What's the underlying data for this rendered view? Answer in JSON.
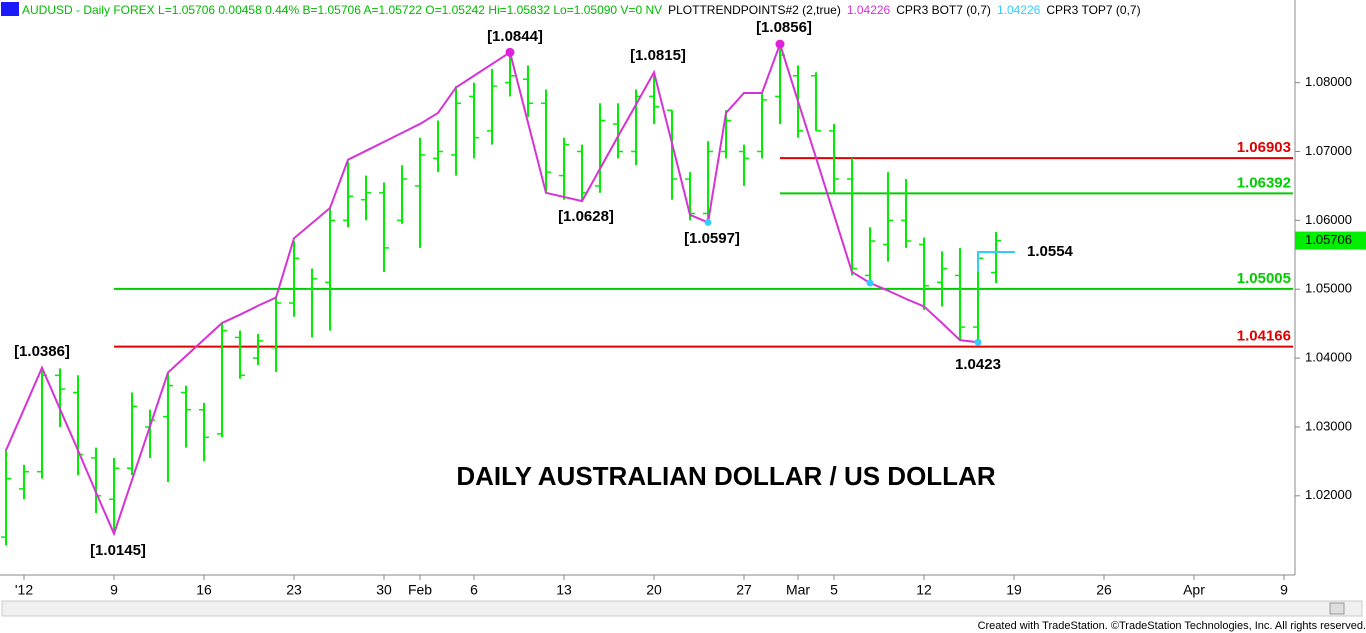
{
  "chart_data": {
    "type": "ohlc",
    "header": [
      "AUDUSD - Daily FOREX L=1.05706 0.00458 0.44% B=1.05706 A=1.05722 O=1.05242 Hi=1.05832 Lo=1.05090 V=0 NV",
      "PLOTTRENDPOINTS#2 (2,true)",
      "1.04226",
      "CPR3 BOT7 (0,7)",
      "1.04226",
      "CPR3 TOP7 (0,7)"
    ],
    "title": "DAILY AUSTRALIAN DOLLAR / US DOLLAR",
    "footer": "Created with TradeStation. ©TradeStation Technologies, Inc. All rights reserved.",
    "categories": [
      null,
      "'12",
      null,
      null,
      null,
      null,
      "9",
      null,
      null,
      null,
      null,
      "16",
      null,
      null,
      null,
      null,
      "23",
      null,
      null,
      null,
      null,
      "30",
      null,
      "Feb",
      null,
      null,
      "6",
      null,
      null,
      null,
      null,
      "13",
      null,
      null,
      null,
      null,
      "20",
      null,
      null,
      null,
      null,
      "27",
      null,
      null,
      "Mar",
      null,
      "5",
      null,
      null,
      null,
      null,
      "12",
      null,
      null,
      null,
      null,
      "19",
      null,
      null,
      null,
      null,
      "26",
      null,
      null,
      null,
      null,
      "Apr",
      null,
      null,
      null,
      null,
      "9"
    ],
    "color": "#00ee00",
    "open": [
      1.014,
      1.021,
      1.0235,
      1.0375,
      1.035,
      1.0255,
      1.0195,
      1.024,
      1.03,
      1.0315,
      1.035,
      1.0325,
      1.029,
      1.043,
      1.04,
      1.0415,
      1.048,
      1.05,
      1.051,
      1.06,
      1.063,
      1.064,
      1.06,
      1.065,
      1.069,
      1.0695,
      1.078,
      1.073,
      1.08,
      1.0805,
      1.077,
      1.0665,
      1.07,
      1.065,
      1.074,
      1.07,
      1.078,
      1.076,
      1.066,
      1.061,
      1.07,
      1.07,
      1.07,
      1.078,
      1.081,
      1.081,
      1.073,
      1.066,
      1.052,
      1.0565,
      1.06,
      1.0565,
      1.051,
      1.052,
      1.0445,
      1.05242,
      null,
      null,
      null,
      null,
      null,
      null,
      null,
      null,
      null,
      null,
      null,
      null,
      null,
      null,
      null,
      null
    ],
    "high": [
      1.0268,
      1.0245,
      1.0386,
      1.0385,
      1.0375,
      1.027,
      1.0255,
      1.035,
      1.0325,
      1.038,
      1.036,
      1.0335,
      1.045,
      1.044,
      1.0435,
      1.049,
      1.057,
      1.053,
      1.062,
      1.0685,
      1.0665,
      1.0655,
      1.068,
      1.072,
      1.0745,
      1.0795,
      1.08,
      1.082,
      1.0844,
      1.0825,
      1.079,
      1.072,
      1.071,
      1.077,
      1.077,
      1.079,
      1.0815,
      1.076,
      1.067,
      1.0715,
      1.076,
      1.071,
      1.0785,
      1.0856,
      1.0825,
      1.0815,
      1.074,
      1.069,
      1.059,
      1.067,
      1.066,
      1.0575,
      1.0555,
      1.056,
      1.0555,
      1.05832,
      null,
      null,
      null,
      null,
      null,
      null,
      null,
      null,
      null,
      null,
      null,
      null,
      null,
      null,
      null,
      null
    ],
    "low": [
      1.0128,
      1.0195,
      1.0225,
      1.03,
      1.023,
      1.0175,
      1.0145,
      1.023,
      1.0255,
      1.022,
      1.027,
      1.025,
      1.0285,
      1.037,
      1.039,
      1.038,
      1.046,
      1.043,
      1.044,
      1.059,
      1.06,
      1.0525,
      1.0595,
      1.056,
      1.067,
      1.0665,
      1.069,
      1.071,
      1.078,
      1.075,
      1.064,
      1.063,
      1.0628,
      1.064,
      1.069,
      1.068,
      1.074,
      1.063,
      1.06,
      1.0597,
      1.069,
      1.065,
      1.069,
      1.074,
      1.072,
      1.073,
      1.064,
      1.052,
      1.051,
      1.054,
      1.056,
      1.047,
      1.0475,
      1.0425,
      1.0423,
      1.0509,
      null,
      null,
      null,
      null,
      null,
      null,
      null,
      null,
      null,
      null,
      null,
      null,
      null,
      null,
      null,
      null
    ],
    "close": [
      1.0225,
      1.0235,
      1.0375,
      1.0355,
      1.026,
      1.02,
      1.024,
      1.033,
      1.031,
      1.036,
      1.0325,
      1.0285,
      1.044,
      1.0375,
      1.0425,
      1.048,
      1.0545,
      1.0515,
      1.06,
      1.0635,
      1.064,
      1.056,
      1.066,
      1.0695,
      1.07,
      1.077,
      1.072,
      1.0795,
      1.081,
      1.077,
      1.067,
      1.071,
      1.064,
      1.0745,
      1.07,
      1.078,
      1.0765,
      1.066,
      1.061,
      1.07,
      1.0745,
      1.069,
      1.0775,
      1.084,
      1.073,
      1.073,
      1.066,
      1.053,
      1.057,
      1.06,
      1.057,
      1.0505,
      1.053,
      1.0445,
      1.0545,
      1.05706,
      null,
      null,
      null,
      null,
      null,
      null,
      null,
      null,
      null,
      null,
      null,
      null,
      null,
      null,
      null,
      null
    ],
    "zigzag": {
      "color": "#d633d6",
      "high_marker_color": "#e020e0",
      "low_marker_color": "#33ccff",
      "values": [
        1.0266,
        1.0326,
        1.0386,
        1.0326,
        1.0266,
        1.0205,
        1.0145,
        1.0223,
        1.0301,
        1.0379,
        1.0403,
        1.0427,
        1.0451,
        1.0463,
        1.0476,
        1.0488,
        1.0574,
        1.0596,
        1.0618,
        1.0688,
        1.0701,
        1.0714,
        1.0727,
        1.074,
        1.0756,
        1.0793,
        1.081,
        1.0827,
        1.0844,
        1.0742,
        1.064,
        1.0634,
        1.0628,
        1.0675,
        1.0722,
        1.0768,
        1.0815,
        1.0712,
        1.0608,
        1.0597,
        1.0756,
        1.0785,
        1.0785,
        1.0856,
        1.0773,
        1.0691,
        1.0608,
        1.0525,
        1.0509,
        1.0498,
        1.0486,
        1.0475,
        1.0451,
        1.0426,
        1.0423,
        null,
        null,
        null,
        null,
        null,
        null,
        null,
        null,
        null,
        null,
        null,
        null,
        null,
        null,
        null,
        null,
        null
      ]
    },
    "annotations": [
      "[1.0386]",
      "[1.0145]",
      "[1.0844]",
      "[1.0815]",
      "[1.0856]",
      "[1.0628]",
      "[1.0597]",
      "1.0423"
    ],
    "levels": [
      {
        "value": 1.06903,
        "color": "#e00000"
      },
      {
        "value": 1.06392,
        "color": "#00cc00"
      },
      {
        "value": 1.05005,
        "color": "#00cc00"
      },
      {
        "value": 1.04166,
        "color": "#e00000"
      }
    ],
    "cpr": {
      "value": 1.0554,
      "color": "#33ccff"
    },
    "last_price": 1.05706,
    "last_price_color": "#00ee00",
    "ylim": [
      1.0085,
      1.092
    ],
    "yticks": [
      {
        "value": 1.02,
        "label": "1.02000"
      },
      {
        "value": 1.03,
        "label": "1.03000"
      },
      {
        "value": 1.04,
        "label": "1.04000"
      },
      {
        "value": 1.05,
        "label": "1.05000"
      },
      {
        "value": 1.06,
        "label": "1.06000"
      },
      {
        "value": 1.07,
        "label": "1.07000"
      },
      {
        "value": 1.08,
        "label": "1.08000"
      }
    ]
  }
}
